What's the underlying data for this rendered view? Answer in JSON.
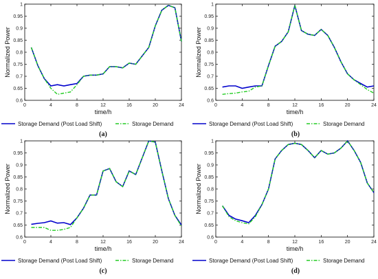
{
  "chart_data": [
    {
      "type": "line",
      "caption": "(a)",
      "xlabel": "time/h",
      "ylabel": "Normalized Power",
      "xlim": [
        0,
        24
      ],
      "ylim": [
        0.6,
        1
      ],
      "xticks": [
        0,
        4,
        8,
        12,
        16,
        20,
        24
      ],
      "yticks": [
        0.6,
        0.65,
        0.7,
        0.75,
        0.8,
        0.85,
        0.9,
        0.95,
        1
      ],
      "ytick_labels": [
        "0.6",
        "0.65",
        "0.7",
        "0.75",
        "0.8",
        "0.85",
        "0.9",
        "0.95",
        "1"
      ],
      "x": [
        1,
        2,
        3,
        4,
        5,
        6,
        7,
        8,
        9,
        10,
        11,
        12,
        13,
        14,
        15,
        16,
        17,
        18,
        19,
        20,
        21,
        22,
        23,
        24
      ],
      "series": [
        {
          "name": "Storage Demand (Post Load Shift)",
          "color": "#0000cc",
          "style": "solid",
          "values": [
            0.82,
            0.745,
            0.69,
            0.66,
            0.665,
            0.66,
            0.665,
            0.67,
            0.7,
            0.705,
            0.705,
            0.71,
            0.74,
            0.74,
            0.735,
            0.755,
            0.75,
            0.785,
            0.82,
            0.91,
            0.975,
            0.995,
            0.985,
            0.845
          ]
        },
        {
          "name": "Storage Demand",
          "color": "#22cc22",
          "style": "dashdot",
          "values": [
            0.82,
            0.745,
            0.69,
            0.65,
            0.625,
            0.63,
            0.635,
            0.665,
            0.7,
            0.705,
            0.705,
            0.71,
            0.74,
            0.74,
            0.735,
            0.755,
            0.75,
            0.785,
            0.82,
            0.91,
            0.975,
            0.995,
            0.985,
            0.845
          ]
        }
      ]
    },
    {
      "type": "line",
      "caption": "(b)",
      "xlabel": "time/h",
      "ylabel": "Normalized Power",
      "xlim": [
        0,
        24
      ],
      "ylim": [
        0.6,
        1
      ],
      "xticks": [
        0,
        4,
        8,
        12,
        16,
        20,
        24
      ],
      "yticks": [
        0.6,
        0.65,
        0.7,
        0.75,
        0.8,
        0.85,
        0.9,
        0.95,
        1
      ],
      "ytick_labels": [
        "0.6",
        "0.65",
        "0.7",
        "0.75",
        "0.8",
        "0.85",
        "0.9",
        "0.95",
        "1"
      ],
      "x": [
        1,
        2,
        3,
        4,
        5,
        6,
        7,
        8,
        9,
        10,
        11,
        12,
        13,
        14,
        15,
        16,
        17,
        18,
        19,
        20,
        21,
        22,
        23,
        24
      ],
      "series": [
        {
          "name": "Storage Demand (Post Load Shift)",
          "color": "#0000cc",
          "style": "solid",
          "values": [
            0.655,
            0.66,
            0.66,
            0.65,
            0.655,
            0.66,
            0.66,
            0.745,
            0.825,
            0.845,
            0.885,
            0.995,
            0.89,
            0.875,
            0.87,
            0.895,
            0.87,
            0.82,
            0.76,
            0.71,
            0.685,
            0.67,
            0.655,
            0.66
          ]
        },
        {
          "name": "Storage Demand",
          "color": "#22cc22",
          "style": "dashdot",
          "values": [
            0.625,
            0.628,
            0.63,
            0.635,
            0.638,
            0.655,
            0.66,
            0.745,
            0.825,
            0.845,
            0.885,
            0.995,
            0.89,
            0.875,
            0.87,
            0.895,
            0.87,
            0.82,
            0.76,
            0.71,
            0.685,
            0.665,
            0.645,
            0.63
          ]
        }
      ]
    },
    {
      "type": "line",
      "caption": "(c)",
      "xlabel": "time/h",
      "ylabel": "Normalized Power",
      "xlim": [
        0,
        24
      ],
      "ylim": [
        0.6,
        1
      ],
      "xticks": [
        0,
        4,
        8,
        12,
        16,
        20,
        24
      ],
      "yticks": [
        0.6,
        0.65,
        0.7,
        0.75,
        0.8,
        0.85,
        0.9,
        0.95,
        1
      ],
      "ytick_labels": [
        "0.6",
        "0.65",
        "0.7",
        "0.75",
        "0.8",
        "0.85",
        "0.9",
        "0.95",
        "1"
      ],
      "x": [
        1,
        2,
        3,
        4,
        5,
        6,
        7,
        8,
        9,
        10,
        11,
        12,
        13,
        14,
        15,
        16,
        17,
        18,
        19,
        20,
        21,
        22,
        23,
        24
      ],
      "series": [
        {
          "name": "Storage Demand (Post Load Shift)",
          "color": "#0000cc",
          "style": "solid",
          "values": [
            0.653,
            0.657,
            0.66,
            0.667,
            0.658,
            0.66,
            0.652,
            0.68,
            0.72,
            0.775,
            0.775,
            0.875,
            0.885,
            0.83,
            0.81,
            0.875,
            0.86,
            0.93,
            1.0,
            0.995,
            0.875,
            0.76,
            0.69,
            0.65
          ]
        },
        {
          "name": "Storage Demand",
          "color": "#22cc22",
          "style": "dashdot",
          "values": [
            0.64,
            0.64,
            0.64,
            0.628,
            0.628,
            0.632,
            0.64,
            0.68,
            0.72,
            0.775,
            0.775,
            0.875,
            0.885,
            0.83,
            0.81,
            0.875,
            0.86,
            0.93,
            1.0,
            0.995,
            0.875,
            0.76,
            0.69,
            0.645
          ]
        }
      ]
    },
    {
      "type": "line",
      "caption": "(d)",
      "xlabel": "time/h",
      "ylabel": "Normalized Power",
      "xlim": [
        0,
        24
      ],
      "ylim": [
        0.6,
        1
      ],
      "xticks": [
        0,
        4,
        8,
        12,
        16,
        20,
        24
      ],
      "yticks": [
        0.6,
        0.65,
        0.7,
        0.75,
        0.8,
        0.85,
        0.9,
        0.95,
        1
      ],
      "ytick_labels": [
        "0.6",
        "0.65",
        "0.7",
        "0.75",
        "0.8",
        "0.85",
        "0.9",
        "0.95",
        "1"
      ],
      "x": [
        1,
        2,
        3,
        4,
        5,
        6,
        7,
        8,
        9,
        10,
        11,
        12,
        13,
        14,
        15,
        16,
        17,
        18,
        19,
        20,
        21,
        22,
        23,
        24
      ],
      "series": [
        {
          "name": "Storage Demand (Post Load Shift)",
          "color": "#0000cc",
          "style": "solid",
          "values": [
            0.73,
            0.69,
            0.675,
            0.668,
            0.66,
            0.69,
            0.735,
            0.8,
            0.925,
            0.96,
            0.985,
            0.99,
            0.985,
            0.96,
            0.93,
            0.96,
            0.945,
            0.95,
            0.97,
            1.0,
            0.96,
            0.91,
            0.825,
            0.785
          ]
        },
        {
          "name": "Storage Demand",
          "color": "#22cc22",
          "style": "dashdot",
          "values": [
            0.73,
            0.685,
            0.668,
            0.66,
            0.655,
            0.685,
            0.735,
            0.8,
            0.925,
            0.96,
            0.985,
            0.99,
            0.985,
            0.96,
            0.93,
            0.96,
            0.945,
            0.95,
            0.97,
            1.0,
            0.96,
            0.91,
            0.825,
            0.785
          ]
        }
      ]
    }
  ]
}
